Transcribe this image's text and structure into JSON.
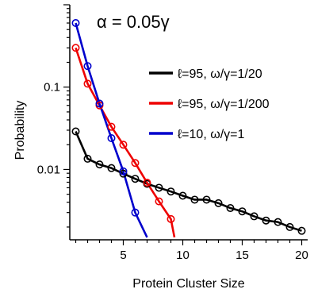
{
  "chart_data": {
    "type": "line",
    "title": "",
    "annotation": "α = 0.05γ",
    "xlabel": "Protein Cluster Size",
    "ylabel": "Probability",
    "xscale": "linear",
    "yscale": "log",
    "xlim": [
      0.5,
      20.5
    ],
    "ylim": [
      0.0014,
      1.0
    ],
    "xticks": [
      5,
      10,
      15,
      20
    ],
    "xtick_labels": [
      "5",
      "10",
      "15",
      "20"
    ],
    "yticks": [
      0.01,
      0.1
    ],
    "ytick_labels": [
      "0.01",
      "0.1"
    ],
    "grid": false,
    "legend_position": "right",
    "series": [
      {
        "name": "ℓ=95, ω/γ=1/20",
        "color": "#000000",
        "x": [
          1,
          2,
          3,
          4,
          5,
          6,
          7,
          8,
          9,
          10,
          11,
          12,
          13,
          14,
          15,
          16,
          17,
          18,
          19,
          20
        ],
        "y": [
          0.029,
          0.0135,
          0.0115,
          0.0104,
          0.0089,
          0.0077,
          0.0067,
          0.006,
          0.0054,
          0.0048,
          0.0043,
          0.0043,
          0.0039,
          0.0034,
          0.0031,
          0.0027,
          0.0024,
          0.0023,
          0.002,
          0.0018
        ]
      },
      {
        "name": "ℓ=95, ω/γ=1/200",
        "color": "#ee0000",
        "x": [
          1,
          2,
          3,
          4,
          5,
          6,
          7,
          8,
          9
        ],
        "y": [
          0.3,
          0.11,
          0.06,
          0.033,
          0.02,
          0.012,
          0.0069,
          0.0041,
          0.0025
        ],
        "line_end": [
          9.3,
          0.0015
        ]
      },
      {
        "name": "ℓ=10, ω/γ=1",
        "color": "#0000cc",
        "x": [
          1,
          2,
          3,
          4,
          5,
          6
        ],
        "y": [
          0.6,
          0.18,
          0.063,
          0.024,
          0.0095,
          0.003
        ],
        "line_end": [
          7.0,
          0.0015
        ]
      }
    ]
  }
}
